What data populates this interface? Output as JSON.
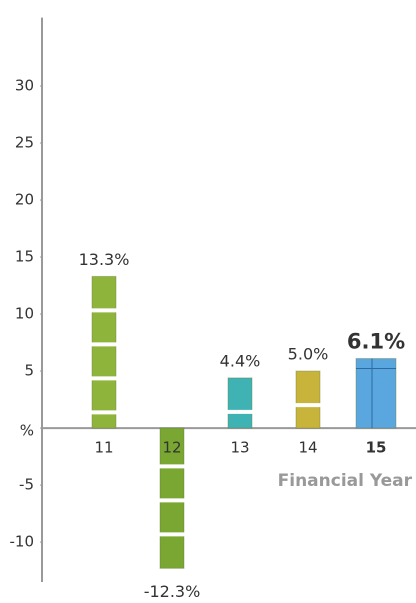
{
  "chart_data": {
    "type": "bar",
    "x_label": "Financial Year",
    "categories": [
      "11",
      "12",
      "13",
      "14",
      "15"
    ],
    "values": [
      13.3,
      -12.3,
      4.4,
      5.0,
      6.1
    ],
    "value_labels": [
      "13.3%",
      "-12.3%",
      "4.4%",
      "5.0%",
      "6.1%"
    ],
    "colors": [
      "#8fb43c",
      "#7aa632",
      "#3fb2b4",
      "#c8b43a",
      "#5aa6de"
    ],
    "label_colors": [
      "#3aaa4a",
      "#3aaa4a",
      "#3aaa4a",
      "#3aaa4a",
      "#3fb4e8"
    ],
    "highlight_category": "15",
    "ylim": [
      -13.5,
      36
    ],
    "yticks": [
      -10,
      -5,
      {
        "value": 0,
        "label": "%"
      },
      5,
      10,
      15,
      20,
      25,
      30
    ]
  }
}
